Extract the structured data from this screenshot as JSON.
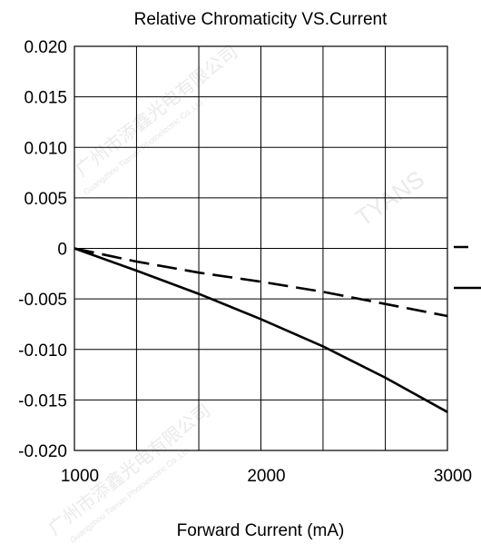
{
  "chart_data": {
    "type": "line",
    "title": "Relative Chromaticity VS.Current",
    "xlabel": "Forward Current (mA)",
    "ylabel": "",
    "xlim": [
      1000,
      3000
    ],
    "ylim": [
      -0.02,
      0.02
    ],
    "x_ticks": [
      1000,
      1333,
      1667,
      2000,
      2333,
      2667,
      3000
    ],
    "x_tick_labels": [
      {
        "value": 1000,
        "label": "1000"
      },
      {
        "value": 2000,
        "label": "2000"
      },
      {
        "value": 3000,
        "label": "3000"
      }
    ],
    "y_ticks": [
      {
        "value": 0.02,
        "label": "0.020"
      },
      {
        "value": 0.015,
        "label": "0.015"
      },
      {
        "value": 0.01,
        "label": "0.010"
      },
      {
        "value": 0.005,
        "label": "0.005"
      },
      {
        "value": 0,
        "label": "0"
      },
      {
        "value": -0.005,
        "label": "-0.005"
      },
      {
        "value": -0.01,
        "label": "-0.010"
      },
      {
        "value": -0.015,
        "label": "-0.015"
      },
      {
        "value": -0.02,
        "label": "-0.020"
      }
    ],
    "grid": true,
    "legend": "right (cut off)",
    "series": [
      {
        "style": "dashed",
        "x": [
          1000,
          1333,
          1667,
          2000,
          2333,
          2667,
          3000
        ],
        "y": [
          0,
          -0.0013,
          -0.0024,
          -0.0033,
          -0.0043,
          -0.0055,
          -0.0067
        ]
      },
      {
        "style": "solid",
        "x": [
          1000,
          1333,
          1667,
          2000,
          2333,
          2667,
          3000
        ],
        "y": [
          0,
          -0.0022,
          -0.0045,
          -0.007,
          -0.0097,
          -0.0128,
          -0.0162
        ]
      }
    ]
  },
  "watermarks": {
    "brand": "TYANS",
    "company_cn": "广州市添鑫光电有限公司",
    "company_en": "Guangzhou Tianxin Photoelectric Co.,Ltd"
  },
  "colors": {
    "line": "#000000",
    "grid": "#000000",
    "watermark": "#d9d9d9"
  }
}
